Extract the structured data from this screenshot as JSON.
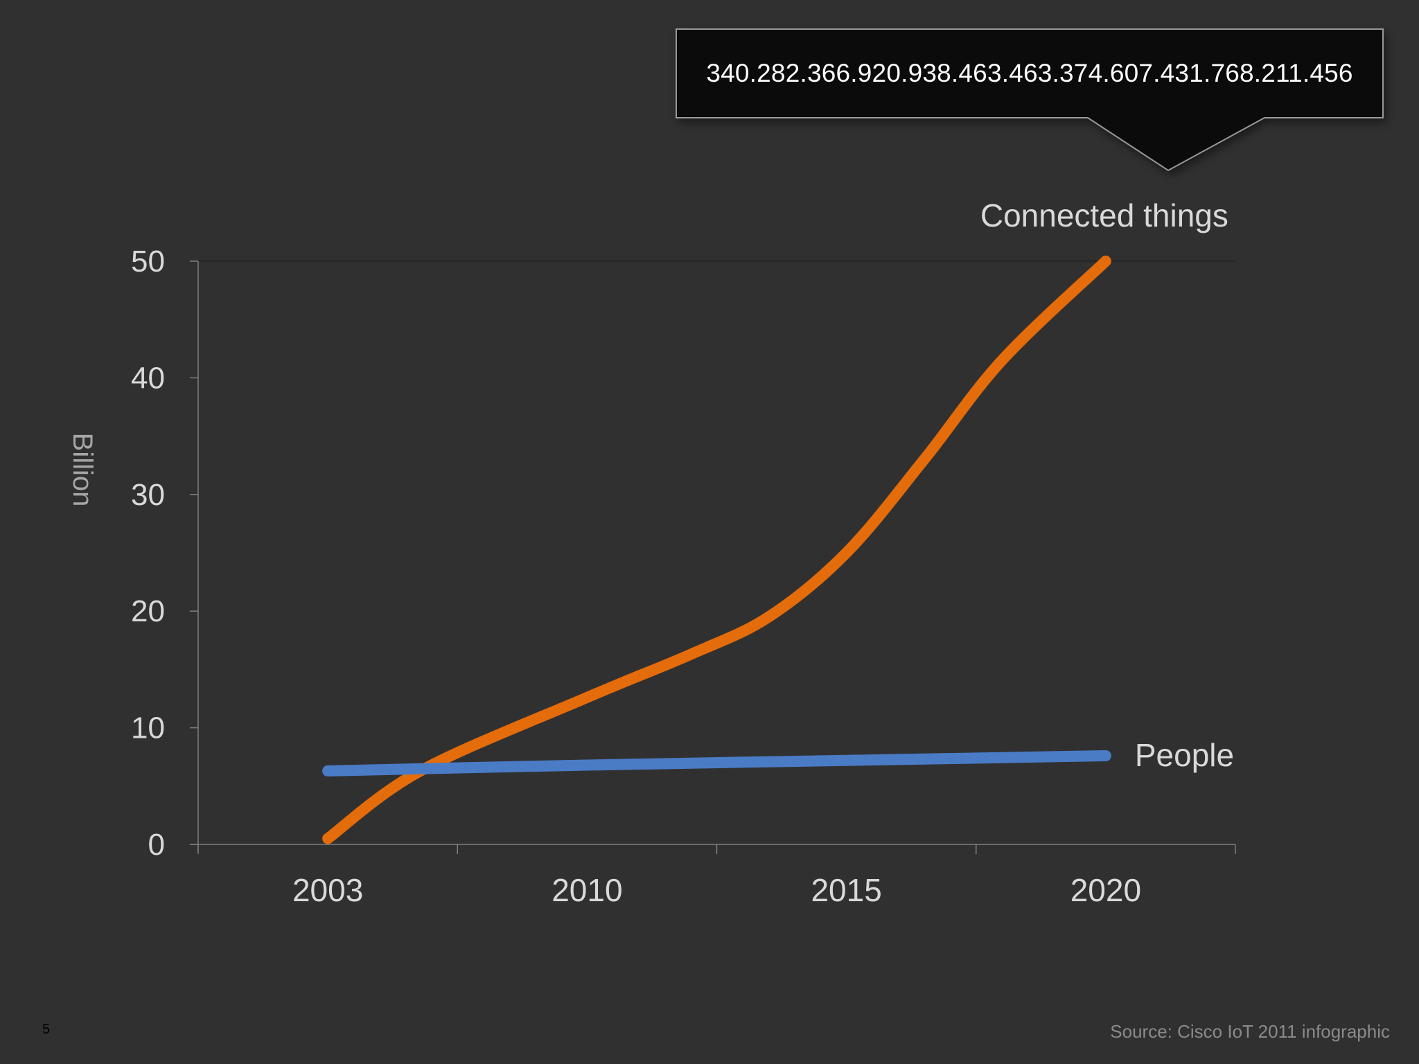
{
  "slide": {
    "number": "5",
    "source": "Source: Cisco IoT 2011 infographic",
    "callout": "340.282.366.920.938.463.463.374.607.431.768.211.456"
  },
  "colors": {
    "background": "#313031",
    "connected_things": "#E46C0A",
    "people": "#4A7CC6",
    "axis": "#7f7f7f",
    "text": "#d9d9d9",
    "callout_bg": "#0b0b0b"
  },
  "chart_data": {
    "type": "line",
    "xlabel": "",
    "ylabel": "Billion",
    "categories": [
      "2003",
      "2010",
      "2015",
      "2020"
    ],
    "ylim": [
      0,
      50
    ],
    "yticks": [
      0,
      10,
      20,
      30,
      40,
      50
    ],
    "grid": false,
    "legend": "inline labels at line ends",
    "series": [
      {
        "name": "Connected things",
        "x": [
          2003,
          2005.5,
          2010,
          2012,
          2013.5,
          2015,
          2016.5,
          2018,
          2020
        ],
        "values": [
          0.5,
          6.3,
          12.6,
          16.3,
          19.5,
          25,
          33,
          41.5,
          50
        ]
      },
      {
        "name": "People",
        "x": [
          2003,
          2010,
          2015,
          2020
        ],
        "values": [
          6.3,
          6.8,
          7.2,
          7.6
        ]
      }
    ]
  }
}
